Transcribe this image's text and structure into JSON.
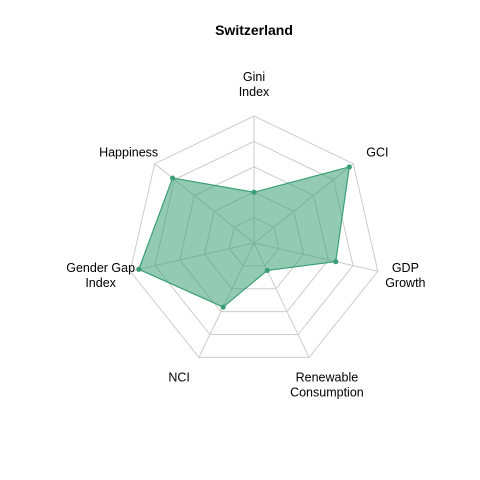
{
  "chart_data": {
    "type": "radar",
    "title": "Switzerland",
    "axes": [
      [
        "Gini",
        "Index"
      ],
      [
        "GCI"
      ],
      [
        "GDP",
        "Growth"
      ],
      [
        "Renewable",
        "Consumption"
      ],
      [
        "NCI"
      ],
      [
        "Gender Gap",
        "Index"
      ],
      [
        "Happiness"
      ]
    ],
    "series": [
      {
        "values": [
          0.4,
          0.96,
          0.66,
          0.24,
          0.56,
          0.93,
          0.82
        ],
        "color": "#3a9f74",
        "fill": "#3a9f74",
        "fill_opacity": 0.55
      }
    ],
    "range": [
      0,
      1
    ],
    "grid_levels": 5
  }
}
